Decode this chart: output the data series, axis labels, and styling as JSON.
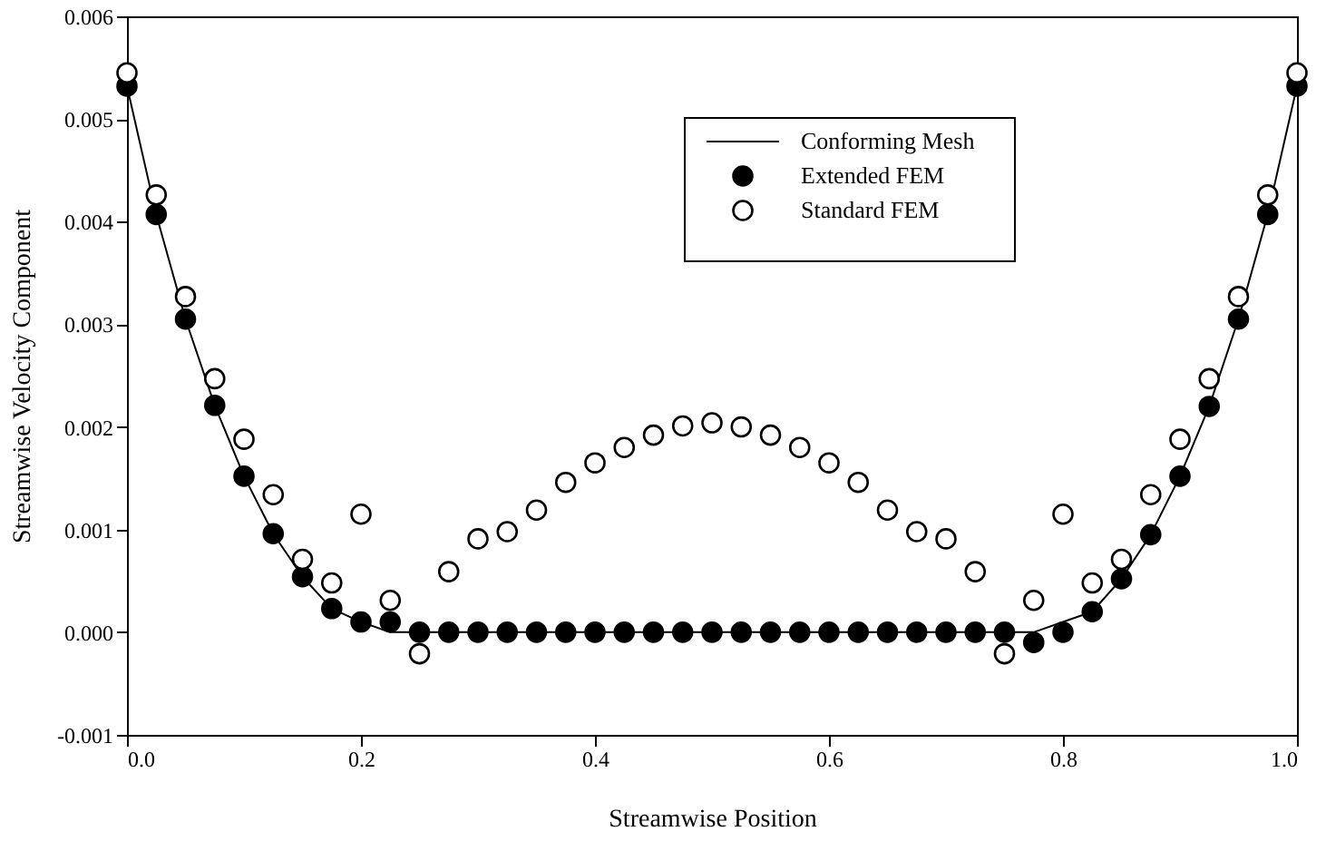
{
  "chart_data": {
    "type": "scatter",
    "xlabel": "Streamwise Position",
    "ylabel": "Streamwise Velocity Component",
    "x": [
      0,
      0.025,
      0.05,
      0.075,
      0.1,
      0.125,
      0.15,
      0.175,
      0.2,
      0.225,
      0.25,
      0.275,
      0.3,
      0.325,
      0.35,
      0.375,
      0.4,
      0.425,
      0.45,
      0.475,
      0.5,
      0.525,
      0.55,
      0.575,
      0.6,
      0.625,
      0.65,
      0.675,
      0.7,
      0.725,
      0.75,
      0.775,
      0.8,
      0.825,
      0.85,
      0.875,
      0.9,
      0.925,
      0.95,
      0.975,
      1.0
    ],
    "series": [
      {
        "name": "Conforming Mesh",
        "type": "line",
        "color": "#000000",
        "marker": "none",
        "line_style": "solid",
        "values": [
          0.00532,
          0.00407,
          0.00305,
          0.00221,
          0.00152,
          0.00096,
          0.00054,
          0.00023,
          0.0001,
          0.0,
          0.0,
          0.0,
          0.0,
          0.0,
          0.0,
          0.0,
          0.0,
          0.0,
          0.0,
          0.0,
          0.0,
          0.0,
          0.0,
          0.0,
          0.0,
          0.0,
          0.0,
          0.0,
          0.0,
          0.0,
          0.0,
          0.0,
          0.0001,
          0.0002,
          0.00052,
          0.00095,
          0.00152,
          0.0022,
          0.00305,
          0.00407,
          0.00532
        ]
      },
      {
        "name": "Extended FEM",
        "color": "#000000",
        "marker": "circle",
        "values": [
          0.00532,
          0.00407,
          0.00305,
          0.00221,
          0.00152,
          0.00096,
          0.00054,
          0.00023,
          0.0001,
          0.0001,
          0.0,
          0.0,
          0.0,
          0.0,
          0.0,
          0.0,
          0.0,
          0.0,
          0.0,
          0.0,
          0.0,
          0.0,
          0.0,
          0.0,
          0.0,
          0.0,
          0.0,
          0.0,
          0.0,
          0.0,
          0.0,
          -0.0001,
          0.0,
          0.0002,
          0.00052,
          0.00095,
          0.00152,
          0.0022,
          0.00305,
          0.00407,
          0.00532
        ]
      },
      {
        "name": "Standard FEM",
        "color": "#ffffff",
        "marker": "circle",
        "values": [
          0.00545,
          0.00426,
          0.00327,
          0.00247,
          0.00188,
          0.00134,
          0.00071,
          0.00048,
          0.00115,
          0.00031,
          -0.00021,
          0.00059,
          0.00091,
          0.00098,
          0.00119,
          0.00146,
          0.00165,
          0.0018,
          0.00192,
          0.00201,
          0.00204,
          0.002,
          0.00192,
          0.0018,
          0.00165,
          0.00146,
          0.00119,
          0.00098,
          0.00091,
          0.00059,
          -0.00021,
          0.00031,
          0.00115,
          0.00048,
          0.00071,
          0.00134,
          0.00188,
          0.00247,
          0.00327,
          0.00426,
          0.00545
        ]
      }
    ],
    "xlim": [
      0,
      1.0
    ],
    "xticks": [
      {
        "value": 0,
        "label": "0.0"
      },
      0.2,
      0.4,
      0.6,
      0.8,
      {
        "value": 1.0,
        "label": "1.0"
      }
    ],
    "ylim": [
      -0.001,
      0.006
    ],
    "yticks": [
      -0.001,
      {
        "value": 0,
        "label": "0.000"
      },
      0.001,
      0.002,
      0.003,
      0.004,
      0.005,
      0.006
    ],
    "grid": false,
    "legend": "top"
  }
}
